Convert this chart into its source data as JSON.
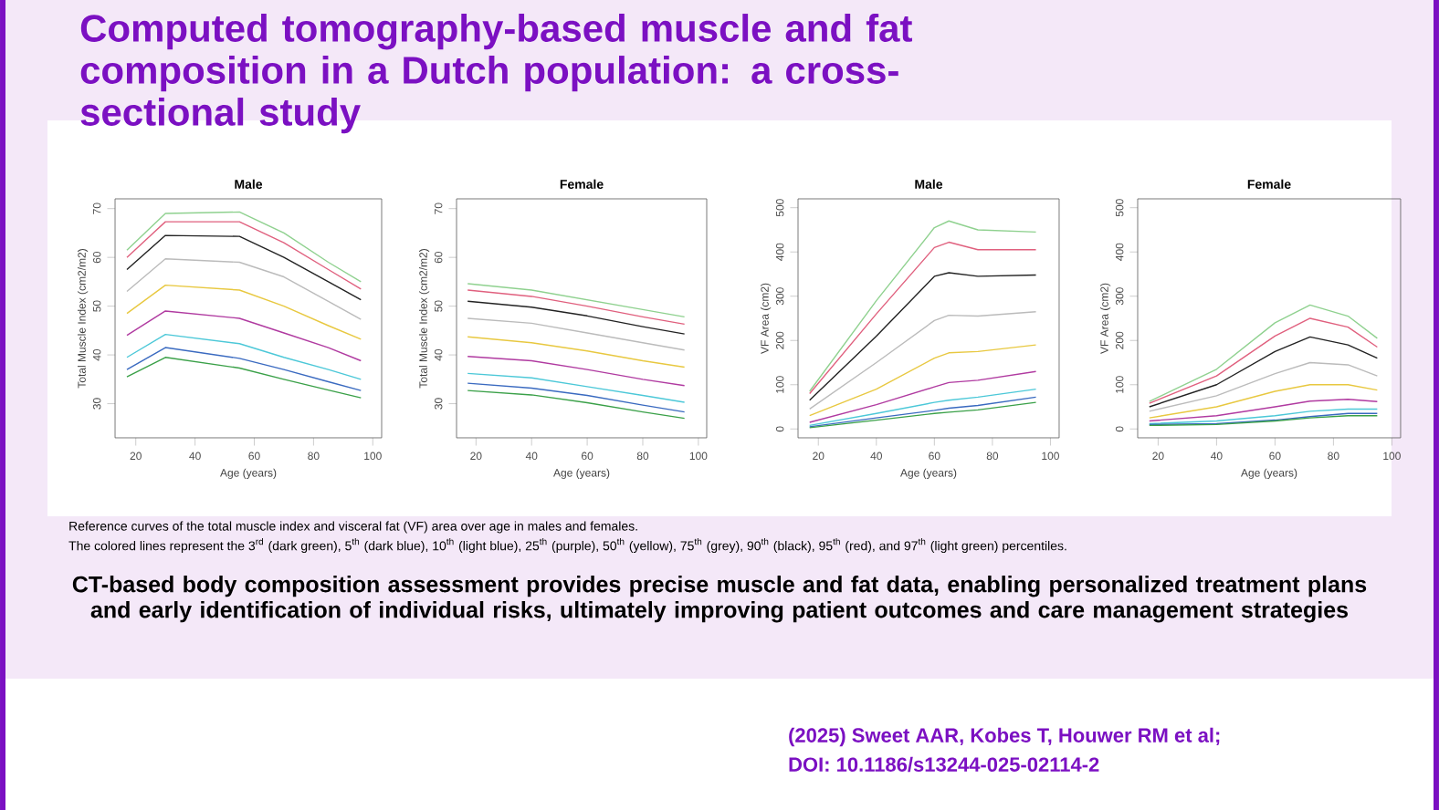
{
  "chart_data": [
    {
      "type": "other",
      "title": "Computed tomography-based muscle and fat composition in a Dutch population: a cross-sectional study",
      "annotations": [
        "Reference curves of the total muscle index and visceral fat (VF) area over age in males and females.",
        "The colored lines represent the 3$^{rd}$ (dark green), 5$^{th}$ (dark blue), 10$^{th}$ (light blue), 25$^{th}$ (purple), 50$^{th}$ (yellow), 75$^{th}$ (grey), 90$^{th}$ (black), 95$^{th}$ (red), and 97$^{th}$ (light green) percentiles.",
        "CT-based body composition assessment provides precise muscle and fat data, enabling personalized treatment plans and early identification of individual risks, ultimately improving patient outcomes and care management strategies",
        "(2025) Sweet AAR, Kobes T, Houwer RM et al;",
        "DOI: 10.1186/s13244-025-02114-2"
      ]
    },
    {
      "type": "line",
      "title": "Male",
      "xlabel": "Age (years)",
      "ylabel": "Total Muscle Index (cm2/m2)",
      "xlim": [
        13,
        103
      ],
      "ylim": [
        23,
        72
      ],
      "xticks": [
        20,
        40,
        60,
        80,
        100
      ],
      "yticks": [
        30,
        40,
        50,
        60,
        70
      ],
      "x": [
        17,
        30,
        55,
        70,
        85,
        96
      ],
      "series": [
        {
          "color": "#8fd18f",
          "values": [
            61.5,
            69,
            69.3,
            65,
            59,
            55
          ]
        },
        {
          "color": "#e0607e",
          "values": [
            60,
            67.3,
            67.3,
            63,
            57.5,
            53.5
          ]
        },
        {
          "color": "#222222",
          "values": [
            57.5,
            64.5,
            64.3,
            60,
            55,
            51.3
          ]
        },
        {
          "color": "#bbbbbb",
          "values": [
            53,
            59.7,
            59,
            56,
            51,
            47.3
          ]
        },
        {
          "color": "#e8c840",
          "values": [
            48.5,
            54.3,
            53.3,
            50,
            46,
            43.2
          ]
        },
        {
          "color": "#b03aa0",
          "values": [
            44,
            49,
            47.5,
            44.5,
            41.5,
            38.8
          ]
        },
        {
          "color": "#4cc8d8",
          "values": [
            39.5,
            44.2,
            42.3,
            39.5,
            37,
            35
          ]
        },
        {
          "color": "#3a6ac0",
          "values": [
            37,
            41.5,
            39.3,
            37,
            34.5,
            32.7
          ]
        },
        {
          "color": "#3aa048",
          "values": [
            35.5,
            39.5,
            37.3,
            35,
            32.8,
            31.2
          ]
        }
      ]
    },
    {
      "type": "line",
      "title": "Female",
      "xlabel": "Age (years)",
      "ylabel": "Total Muscle Index (cm2/m2)",
      "xlim": [
        13,
        103
      ],
      "ylim": [
        23,
        72
      ],
      "xticks": [
        20,
        40,
        60,
        80,
        100
      ],
      "yticks": [
        30,
        40,
        50,
        60,
        70
      ],
      "x": [
        17,
        40,
        60,
        80,
        95
      ],
      "series": [
        {
          "color": "#8fd18f",
          "values": [
            54.6,
            53.3,
            51.3,
            49.3,
            47.8
          ]
        },
        {
          "color": "#e0607e",
          "values": [
            53.3,
            52,
            50,
            47.8,
            46.3
          ]
        },
        {
          "color": "#222222",
          "values": [
            51,
            49.8,
            48,
            45.8,
            44.3
          ]
        },
        {
          "color": "#bbbbbb",
          "values": [
            47.5,
            46.5,
            44.5,
            42.5,
            41
          ]
        },
        {
          "color": "#e8c840",
          "values": [
            43.7,
            42.5,
            40.8,
            38.8,
            37.5
          ]
        },
        {
          "color": "#b03aa0",
          "values": [
            39.7,
            38.8,
            37,
            35,
            33.7
          ]
        },
        {
          "color": "#4cc8d8",
          "values": [
            36.2,
            35.3,
            33.5,
            31.7,
            30.3
          ]
        },
        {
          "color": "#3a6ac0",
          "values": [
            34.2,
            33.2,
            31.7,
            29.7,
            28.3
          ]
        },
        {
          "color": "#3aa048",
          "values": [
            32.7,
            31.8,
            30.2,
            28.3,
            27
          ]
        }
      ]
    },
    {
      "type": "line",
      "title": "Male",
      "xlabel": "Age (years)",
      "ylabel": "VF Area (cm2)",
      "xlim": [
        13,
        103
      ],
      "ylim": [
        -20,
        520
      ],
      "xticks": [
        20,
        40,
        60,
        80,
        100
      ],
      "yticks": [
        0,
        100,
        200,
        300,
        400,
        500
      ],
      "x": [
        17,
        40,
        60,
        65,
        75,
        95
      ],
      "series": [
        {
          "color": "#8fd18f",
          "values": [
            85,
            290,
            455,
            470,
            450,
            445
          ]
        },
        {
          "color": "#e0607e",
          "values": [
            80,
            260,
            410,
            422,
            405,
            405
          ]
        },
        {
          "color": "#222222",
          "values": [
            65,
            210,
            345,
            353,
            345,
            348
          ]
        },
        {
          "color": "#bbbbbb",
          "values": [
            45,
            150,
            245,
            257,
            255,
            265
          ]
        },
        {
          "color": "#e8c840",
          "values": [
            30,
            90,
            160,
            172,
            175,
            190
          ]
        },
        {
          "color": "#b03aa0",
          "values": [
            15,
            55,
            95,
            105,
            110,
            130
          ]
        },
        {
          "color": "#4cc8d8",
          "values": [
            8,
            35,
            60,
            65,
            72,
            90
          ]
        },
        {
          "color": "#3a6ac0",
          "values": [
            5,
            25,
            42,
            47,
            53,
            72
          ]
        },
        {
          "color": "#3aa048",
          "values": [
            3,
            20,
            35,
            38,
            43,
            60
          ]
        }
      ]
    },
    {
      "type": "line",
      "title": "Female",
      "xlabel": "Age (years)",
      "ylabel": "VF Area (cm2)",
      "xlim": [
        13,
        103
      ],
      "ylim": [
        -20,
        520
      ],
      "xticks": [
        20,
        40,
        60,
        80,
        100
      ],
      "yticks": [
        0,
        100,
        200,
        300,
        400,
        500
      ],
      "x": [
        17,
        40,
        60,
        72,
        85,
        95
      ],
      "series": [
        {
          "color": "#8fd18f",
          "values": [
            62,
            135,
            240,
            280,
            255,
            205
          ]
        },
        {
          "color": "#e0607e",
          "values": [
            58,
            120,
            210,
            250,
            230,
            185
          ]
        },
        {
          "color": "#222222",
          "values": [
            50,
            100,
            175,
            208,
            190,
            160
          ]
        },
        {
          "color": "#bbbbbb",
          "values": [
            40,
            75,
            125,
            150,
            145,
            120
          ]
        },
        {
          "color": "#e8c840",
          "values": [
            25,
            50,
            85,
            100,
            100,
            88
          ]
        },
        {
          "color": "#b03aa0",
          "values": [
            18,
            30,
            50,
            63,
            67,
            62
          ]
        },
        {
          "color": "#4cc8d8",
          "values": [
            12,
            18,
            30,
            40,
            45,
            45
          ]
        },
        {
          "color": "#3a6ac0",
          "values": [
            10,
            12,
            20,
            28,
            35,
            35
          ]
        },
        {
          "color": "#3aa048",
          "values": [
            8,
            10,
            18,
            25,
            30,
            30
          ]
        }
      ]
    }
  ]
}
